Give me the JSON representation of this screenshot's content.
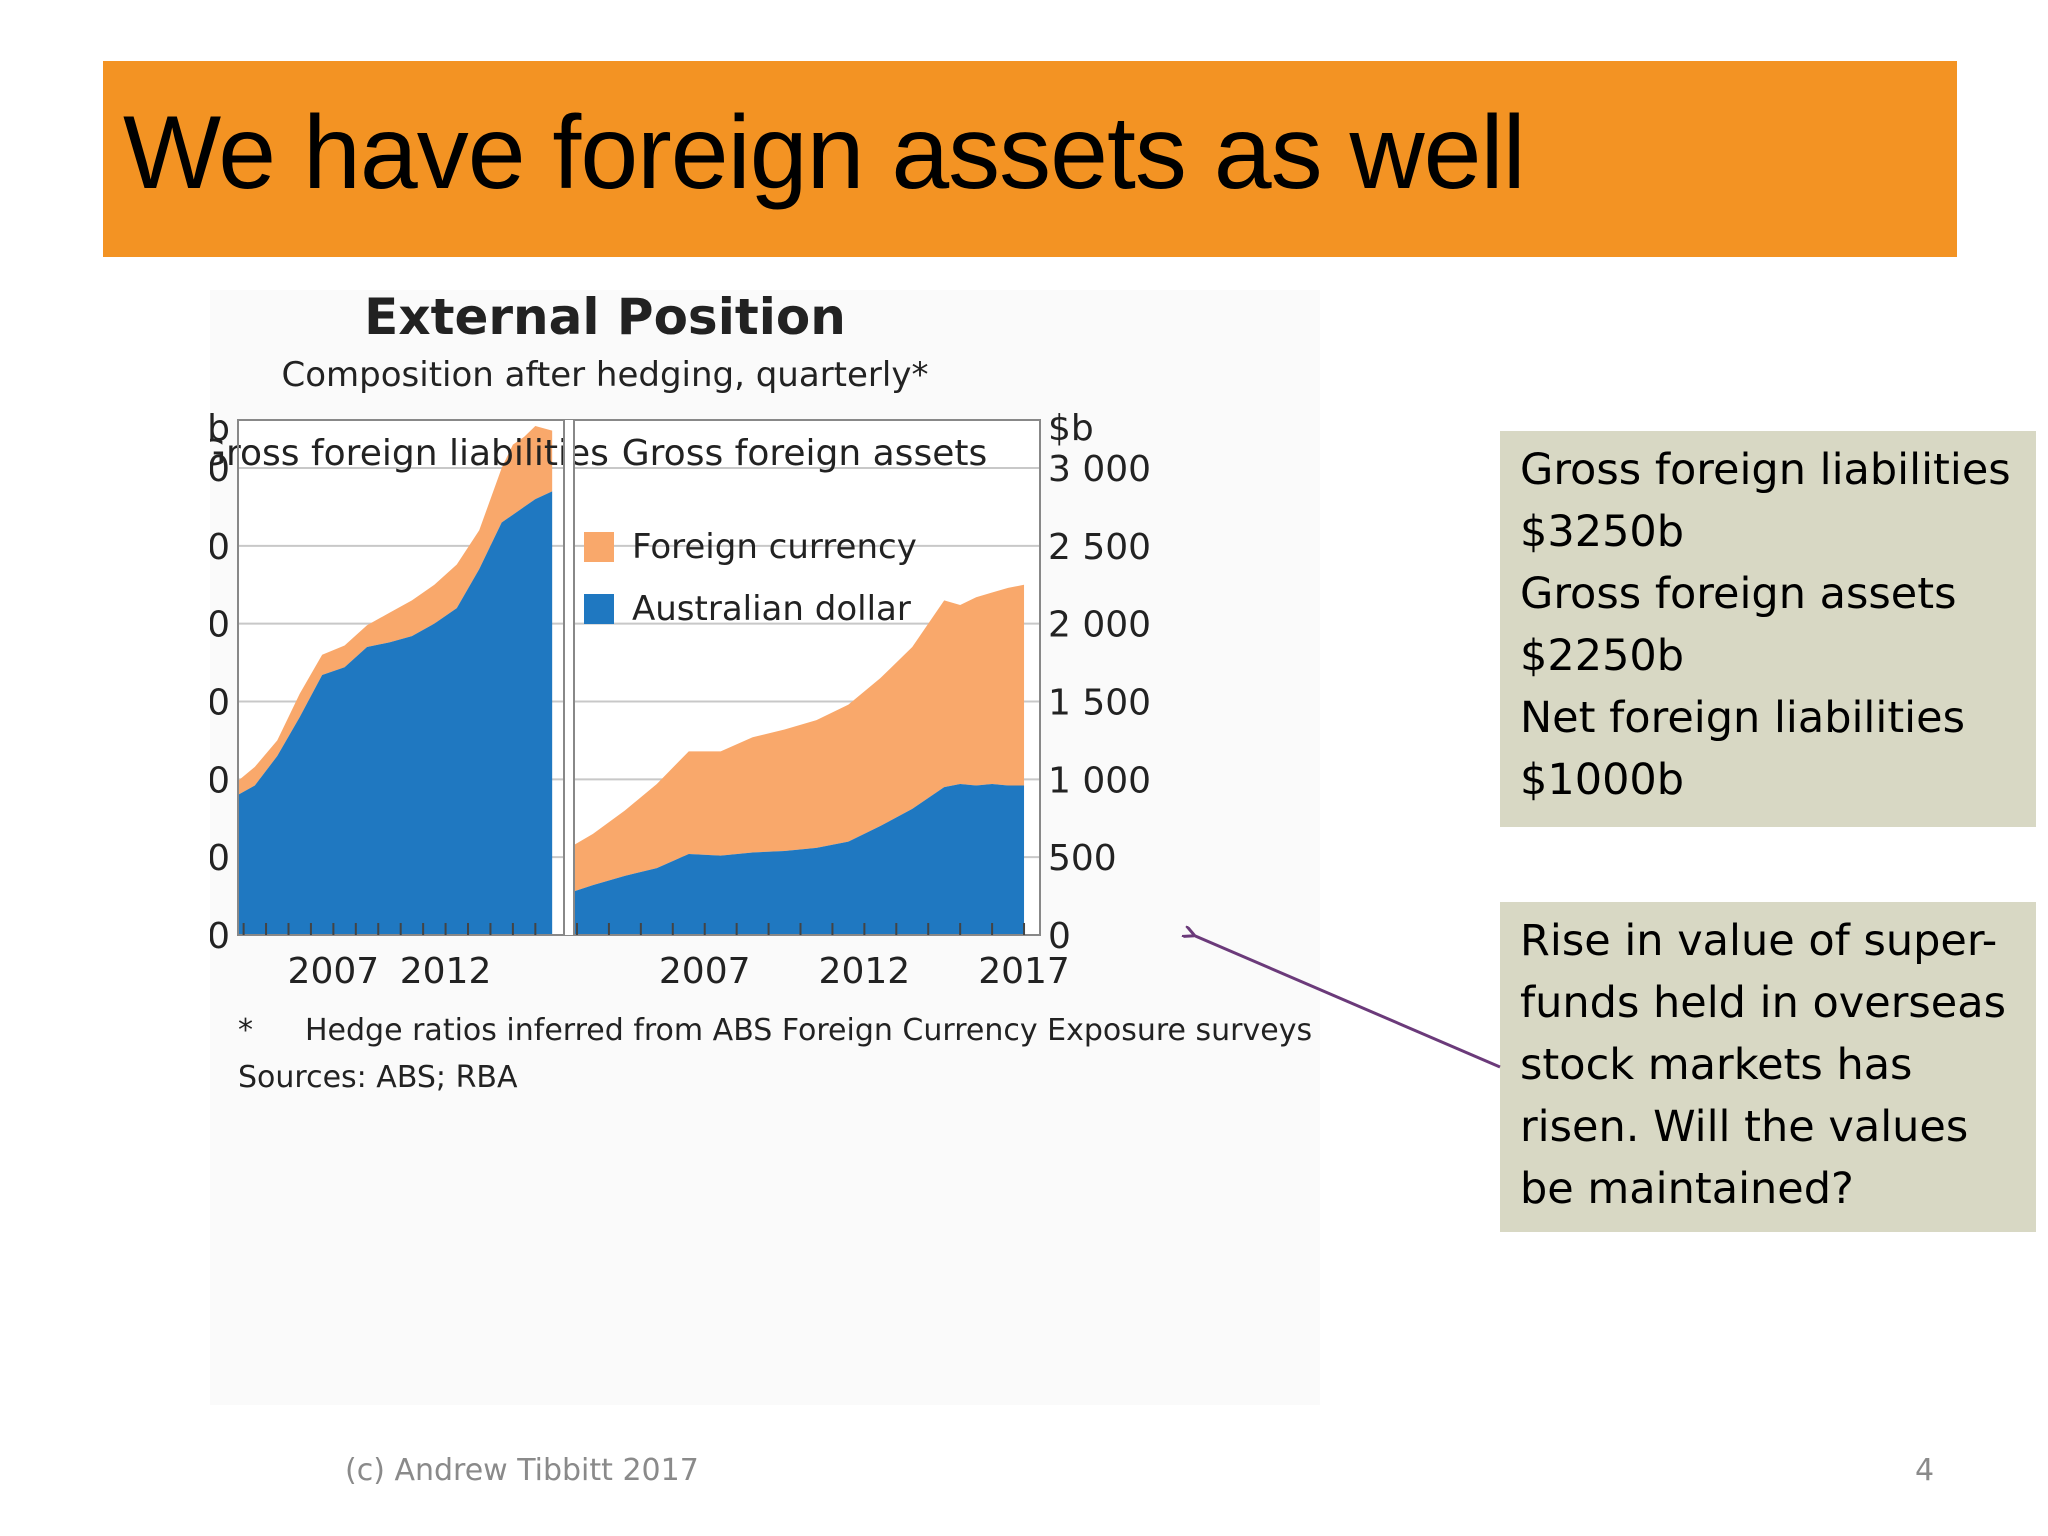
{
  "slide": {
    "title": "We have foreign assets as well",
    "footer_copyright": "(c) Andrew Tibbitt 2017",
    "page_number": "4"
  },
  "chart_data": {
    "type": "area",
    "title": "External Position",
    "subtitle": "Composition after hedging, quarterly*",
    "ylabel_left": "$b",
    "ylabel_right": "$b",
    "ylim": [
      0,
      3500
    ],
    "yticks": [
      0,
      500,
      1000,
      1500,
      2000,
      2500,
      3000
    ],
    "ytick_labels": [
      "0",
      "500",
      "1 000",
      "1 500",
      "2 000",
      "2 500",
      "3 000"
    ],
    "xlim": [
      2002.75,
      2017.5
    ],
    "xticks": [
      2007,
      2012,
      2017
    ],
    "xtick_labels_left": [
      "2007",
      "2012"
    ],
    "xtick_labels_right": [
      "2007",
      "2012",
      "2017"
    ],
    "grid": true,
    "legend_placement": "top-left of right panel",
    "colors": {
      "foreign_currency": "#f9a86b",
      "australian_dollar": "#1f78c1"
    },
    "legend": [
      "Foreign currency",
      "Australian dollar"
    ],
    "panels": [
      {
        "name": "Gross foreign liabilities",
        "x": [
          2002.75,
          2003.5,
          2004.5,
          2005.5,
          2006.5,
          2007.5,
          2008.5,
          2009.5,
          2010.5,
          2011.5,
          2012.5,
          2013.5,
          2014.5,
          2015.0,
          2015.5,
          2016.0,
          2016.75
        ],
        "series": [
          {
            "name": "Australian dollar",
            "values": [
              900,
              960,
              1150,
              1400,
              1670,
              1720,
              1850,
              1880,
              1920,
              2000,
              2100,
              2350,
              2650,
              2700,
              2750,
              2800,
              2850
            ]
          },
          {
            "name": "Foreign currency",
            "values": [
              990,
              1080,
              1250,
              1550,
              1800,
              1860,
              1990,
              2070,
              2150,
              2250,
              2380,
              2600,
              3000,
              3150,
              3200,
              3270,
              3240
            ]
          }
        ]
      },
      {
        "name": "Gross foreign assets",
        "x": [
          2002.75,
          2003.5,
          2004.5,
          2005.5,
          2006.5,
          2007.5,
          2008.5,
          2009.5,
          2010.5,
          2011.5,
          2012.5,
          2013.5,
          2014.5,
          2015.0,
          2015.5,
          2016.0,
          2016.5,
          2017.0
        ],
        "series": [
          {
            "name": "Australian dollar",
            "values": [
              270,
              320,
              380,
              430,
              520,
              510,
              530,
              540,
              560,
              600,
              700,
              810,
              950,
              970,
              960,
              970,
              960,
              960
            ]
          },
          {
            "name": "Foreign currency",
            "values": [
              560,
              650,
              800,
              970,
              1180,
              1180,
              1270,
              1320,
              1380,
              1480,
              1650,
              1850,
              2150,
              2120,
              2170,
              2200,
              2230,
              2250
            ]
          }
        ]
      }
    ],
    "footnote": "Hedge ratios inferred from ABS Foreign Currency Exposure surveys",
    "footnote_marker": "*",
    "sources": "Sources: ABS; RBA"
  },
  "callouts": {
    "figures": [
      "Gross foreign liabilities",
      "$3250b",
      "Gross foreign assets",
      "$2250b",
      "Net foreign liabilities",
      "$1000b"
    ],
    "note": "Rise in value of super-funds held in overseas stock markets has risen. Will the values be maintained?"
  }
}
